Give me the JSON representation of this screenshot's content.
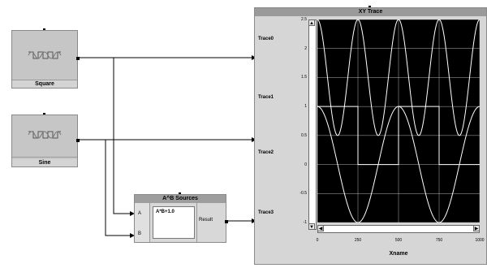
{
  "nodes": {
    "square": {
      "label": "Square",
      "icon": "square-wave-icon"
    },
    "sine": {
      "label": "Sine",
      "icon": "sine-wave-icon"
    }
  },
  "formula": {
    "title": "A^B Sources",
    "input_a": "A",
    "input_b": "B",
    "expression": "A*B+1.0",
    "output": "Result"
  },
  "xy_trace": {
    "title": "XY Trace",
    "trace_labels": [
      "Trace0",
      "Trace1",
      "Trace2",
      "Trace3"
    ],
    "x_label": "Xname",
    "y_ticks": [
      "2.5",
      "2",
      "1.5",
      "1",
      "0.5",
      "0",
      "-0.5",
      "-1"
    ],
    "x_ticks": [
      "0",
      "250",
      "500",
      "750",
      "1000"
    ]
  },
  "chart_data": {
    "type": "line",
    "title": "XY Trace",
    "xlabel": "Xname",
    "ylabel": "",
    "xlim": [
      0,
      1000
    ],
    "ylim": [
      -1,
      2.5
    ],
    "grid": true,
    "series": [
      {
        "name": "Trace0",
        "kind": "sine",
        "offset": 1.5,
        "amplitude": 1,
        "period": 250
      },
      {
        "name": "Trace1",
        "kind": "sine",
        "offset": 0,
        "amplitude": 1,
        "period": 500
      },
      {
        "name": "Trace2",
        "kind": "square",
        "offset": 0.5,
        "amplitude": 0.5,
        "period": 500
      }
    ]
  },
  "colors": {
    "plot_bg": "#000000",
    "trace": "#ffffff",
    "grid": "#ffffff",
    "node": "#c6c6c6"
  }
}
